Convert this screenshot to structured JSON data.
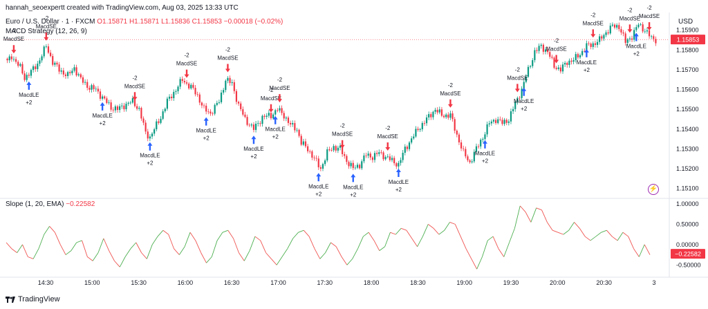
{
  "attribution": "hannah_seoexpertt created with TradingView.com, Aug 03, 2025 13:33 UTC",
  "symbol_line": {
    "header": "Euro / U.S. Dollar · 1 · FXCM",
    "ohlc": "O1.15871  H1.15871  L1.15836  C1.15853  −0.00018 (−0.02%)"
  },
  "strategy_line": "MACD Strategy (12, 26, 9)",
  "indicator_line": {
    "label": "Slope (1, 20, EMA)",
    "value": "−0.22582"
  },
  "currency": "USD",
  "last_price_label": "1.15853",
  "last_slope_label": "−0.22582",
  "footer_brand": "TradingView",
  "icons": [
    "tradingview-logo-icon",
    "lightning-icon"
  ],
  "colors": {
    "up": "#089981",
    "down": "#f23645",
    "signal_buy": "#2962ff",
    "signal_sell": "#f23645",
    "slope_up": "#4caf50",
    "slope_down": "#ef5350"
  },
  "chart_data": [
    {
      "type": "candlestick",
      "title": "Euro / U.S. Dollar · 1 · FXCM",
      "x_ticks": [
        "14:30",
        "15:00",
        "15:30",
        "16:00",
        "16:30",
        "17:00",
        "17:30",
        "18:00",
        "18:30",
        "19:00",
        "19:30",
        "20:00",
        "20:30",
        "3"
      ],
      "y_ticks": [
        "1.15900",
        "1.15800",
        "1.15700",
        "1.15600",
        "1.15500",
        "1.15400",
        "1.15300",
        "1.15200",
        "1.15100"
      ],
      "ylim": [
        1.1506,
        1.1599
      ],
      "close_path": [
        [
          0,
          1.1574
        ],
        [
          2,
          1.1577
        ],
        [
          6,
          1.1571
        ],
        [
          8,
          1.1566
        ],
        [
          11,
          1.1569
        ],
        [
          14,
          1.1573
        ],
        [
          18,
          1.1582
        ],
        [
          21,
          1.1574
        ],
        [
          24,
          1.157
        ],
        [
          28,
          1.1567
        ],
        [
          31,
          1.1571
        ],
        [
          34,
          1.1565
        ],
        [
          38,
          1.1561
        ],
        [
          41,
          1.156
        ],
        [
          44,
          1.1556
        ],
        [
          48,
          1.1551
        ],
        [
          51,
          1.155
        ],
        [
          54,
          1.1552
        ],
        [
          58,
          1.1554
        ],
        [
          61,
          1.155
        ],
        [
          64,
          1.1538
        ],
        [
          66,
          1.1536
        ],
        [
          68,
          1.154
        ],
        [
          71,
          1.1546
        ],
        [
          74,
          1.1554
        ],
        [
          78,
          1.156
        ],
        [
          81,
          1.1565
        ],
        [
          84,
          1.1562
        ],
        [
          86,
          1.156
        ],
        [
          88,
          1.1557
        ],
        [
          91,
          1.155
        ],
        [
          94,
          1.1548
        ],
        [
          96,
          1.1551
        ],
        [
          98,
          1.1554
        ],
        [
          101,
          1.1565
        ],
        [
          104,
          1.1563
        ],
        [
          107,
          1.1552
        ],
        [
          110,
          1.1545
        ],
        [
          114,
          1.154
        ],
        [
          118,
          1.1546
        ],
        [
          122,
          1.1547
        ],
        [
          125,
          1.155
        ],
        [
          128,
          1.1547
        ],
        [
          131,
          1.1542
        ],
        [
          134,
          1.154
        ],
        [
          136,
          1.1533
        ],
        [
          139,
          1.153
        ],
        [
          142,
          1.1525
        ],
        [
          145,
          1.152
        ],
        [
          148,
          1.1528
        ],
        [
          151,
          1.1531
        ],
        [
          154,
          1.153
        ],
        [
          157,
          1.1524
        ],
        [
          160,
          1.152
        ],
        [
          163,
          1.1522
        ],
        [
          166,
          1.1527
        ],
        [
          169,
          1.1526
        ],
        [
          172,
          1.1528
        ],
        [
          175,
          1.1526
        ],
        [
          178,
          1.1524
        ],
        [
          181,
          1.1522
        ],
        [
          184,
          1.153
        ],
        [
          187,
          1.1535
        ],
        [
          190,
          1.154
        ],
        [
          194,
          1.1545
        ],
        [
          198,
          1.155
        ],
        [
          201,
          1.1547
        ],
        [
          205,
          1.1547
        ],
        [
          208,
          1.1537
        ],
        [
          211,
          1.1528
        ],
        [
          214,
          1.1523
        ],
        [
          217,
          1.153
        ],
        [
          220,
          1.1536
        ],
        [
          223,
          1.1543
        ],
        [
          226,
          1.1545
        ],
        [
          229,
          1.1543
        ],
        [
          232,
          1.1545
        ],
        [
          235,
          1.1553
        ],
        [
          238,
          1.156
        ],
        [
          241,
          1.157
        ],
        [
          244,
          1.1579
        ],
        [
          247,
          1.1582
        ],
        [
          250,
          1.1579
        ],
        [
          253,
          1.1572
        ],
        [
          256,
          1.157
        ],
        [
          259,
          1.1574
        ],
        [
          262,
          1.1575
        ],
        [
          265,
          1.1578
        ],
        [
          268,
          1.1582
        ],
        [
          271,
          1.1583
        ],
        [
          274,
          1.1585
        ],
        [
          277,
          1.1589
        ],
        [
          280,
          1.1592
        ],
        [
          283,
          1.1592
        ],
        [
          286,
          1.1584
        ],
        [
          289,
          1.1587
        ],
        [
          292,
          1.1593
        ],
        [
          295,
          1.159
        ],
        [
          298,
          1.1586
        ],
        [
          300,
          1.15853
        ]
      ],
      "signals": [
        {
          "bar": 3,
          "type": "sell",
          "label": "MacdSE",
          "qty": "-2"
        },
        {
          "bar": 10,
          "type": "buy",
          "label": "MacdLE",
          "qty": "+2"
        },
        {
          "bar": 18,
          "type": "sell",
          "label": "MacdSE",
          "qty": "-2"
        },
        {
          "bar": 44,
          "type": "buy",
          "label": "MacdLE",
          "qty": "+2"
        },
        {
          "bar": 59,
          "type": "sell",
          "label": "MacdSE",
          "qty": "-2"
        },
        {
          "bar": 66,
          "type": "buy",
          "label": "MacdLE",
          "qty": "+2"
        },
        {
          "bar": 83,
          "type": "sell",
          "label": "MacdSE",
          "qty": "-2"
        },
        {
          "bar": 92,
          "type": "buy",
          "label": "MacdLE",
          "qty": "+2"
        },
        {
          "bar": 102,
          "type": "sell",
          "label": "MacdSE",
          "qty": "-2"
        },
        {
          "bar": 114,
          "type": "buy",
          "label": "MacdLE",
          "qty": "+2"
        },
        {
          "bar": 122,
          "type": "sell",
          "label": "MacdSE",
          "qty": "-2"
        },
        {
          "bar": 124,
          "type": "buy",
          "label": "MacdLE",
          "qty": "+2"
        },
        {
          "bar": 126,
          "type": "sell",
          "label": "MacdSE",
          "qty": "-2"
        },
        {
          "bar": 144,
          "type": "buy",
          "label": "MacdLE",
          "qty": "+2"
        },
        {
          "bar": 155,
          "type": "sell",
          "label": "MacdSE",
          "qty": "-2"
        },
        {
          "bar": 160,
          "type": "buy",
          "label": "MacdLE",
          "qty": "+2"
        },
        {
          "bar": 176,
          "type": "sell",
          "label": "MacdSE",
          "qty": "-2"
        },
        {
          "bar": 181,
          "type": "buy",
          "label": "MacdLE",
          "qty": "+2"
        },
        {
          "bar": 205,
          "type": "sell",
          "label": "MacdSE",
          "qty": "-2"
        },
        {
          "bar": 221,
          "type": "buy",
          "label": "MacdLE",
          "qty": "+2"
        },
        {
          "bar": 236,
          "type": "sell",
          "label": "MacdSE",
          "qty": "-2"
        },
        {
          "bar": 239,
          "type": "buy",
          "label": "MacdLE",
          "qty": "+2"
        },
        {
          "bar": 254,
          "type": "sell",
          "label": "MacdSE",
          "qty": "-2"
        },
        {
          "bar": 268,
          "type": "buy",
          "label": "MacdLE",
          "qty": "+2"
        },
        {
          "bar": 271,
          "type": "sell",
          "label": "MacdSE",
          "qty": "-2"
        },
        {
          "bar": 291,
          "type": "buy",
          "label": "MacdLE",
          "qty": "+2"
        },
        {
          "bar": 288,
          "type": "sell",
          "label": "MacdSE",
          "qty": "-2"
        },
        {
          "bar": 297,
          "type": "sell",
          "label": "MacdSE",
          "qty": "-2"
        }
      ]
    },
    {
      "type": "line",
      "title": "Slope (1, 20, EMA)",
      "y_ticks": [
        "1.00000",
        "0.50000",
        "0.00000",
        "-0.50000"
      ],
      "ylim": [
        -0.75,
        1.05
      ],
      "values": [
        0.05,
        -0.1,
        -0.2,
        0.0,
        -0.3,
        -0.35,
        -0.1,
        0.25,
        0.45,
        0.3,
        0.0,
        -0.25,
        -0.15,
        0.05,
        0.1,
        -0.3,
        -0.4,
        -0.2,
        0.15,
        -0.15,
        -0.4,
        -0.55,
        -0.3,
        -0.1,
        0.05,
        -0.2,
        -0.35,
        0.0,
        0.2,
        0.35,
        0.25,
        -0.1,
        -0.25,
        -0.05,
        0.3,
        0.1,
        -0.2,
        -0.45,
        -0.3,
        0.1,
        0.3,
        0.35,
        0.15,
        -0.2,
        -0.4,
        -0.15,
        0.2,
        0.1,
        -0.2,
        -0.35,
        -0.5,
        -0.3,
        -0.1,
        0.15,
        0.3,
        0.35,
        0.2,
        -0.1,
        -0.35,
        -0.2,
        0.05,
        -0.05,
        -0.3,
        -0.5,
        -0.35,
        -0.1,
        0.2,
        0.3,
        0.1,
        -0.15,
        -0.05,
        0.3,
        0.25,
        0.4,
        0.35,
        0.15,
        -0.05,
        0.2,
        0.5,
        0.4,
        0.25,
        0.35,
        0.55,
        0.5,
        0.2,
        -0.1,
        -0.35,
        -0.6,
        -0.3,
        0.1,
        0.2,
        -0.1,
        -0.3,
        0.05,
        0.4,
        0.95,
        0.8,
        0.55,
        0.9,
        0.85,
        0.55,
        0.35,
        0.3,
        0.25,
        0.35,
        0.55,
        0.4,
        0.2,
        0.1,
        0.2,
        0.3,
        0.35,
        0.2,
        0.1,
        0.3,
        0.2,
        -0.1,
        -0.3,
        0.0,
        -0.25
      ]
    }
  ]
}
